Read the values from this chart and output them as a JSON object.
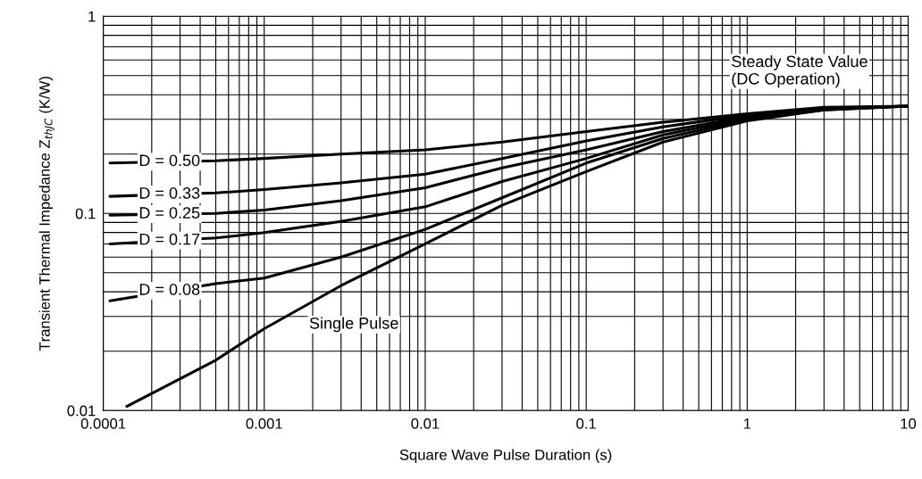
{
  "chart_data": {
    "type": "line",
    "xlabel": "Square Wave Pulse Duration (s)",
    "ylabel": "Transient Thermal Impedance Z$_{thJC}$ (K/W)",
    "log": "xy",
    "grid": true,
    "legend": false,
    "marker": "none",
    "line_style": "solid",
    "xlim": [
      0.0001,
      10
    ],
    "xticks": [
      0.0001,
      0.001,
      0.01,
      0.1,
      1,
      10
    ],
    "ylim": [
      0.01,
      1
    ],
    "yticks": [
      0.01,
      0.1,
      1
    ],
    "x": [
      0.00011,
      0.0005,
      0.001,
      0.003,
      0.01,
      0.03,
      0.1,
      0.3,
      1,
      3,
      10
    ],
    "series": [
      {
        "name": "D = 0.50",
        "color": "#000000",
        "values": [
          0.18,
          0.185,
          0.19,
          0.2,
          0.21,
          0.23,
          0.26,
          0.29,
          0.32,
          0.345,
          0.35
        ]
      },
      {
        "name": "D = 0.33",
        "color": "#000000",
        "values": [
          0.122,
          0.127,
          0.132,
          0.143,
          0.158,
          0.19,
          0.233,
          0.275,
          0.315,
          0.34,
          0.35
        ]
      },
      {
        "name": "D = 0.25",
        "color": "#000000",
        "values": [
          0.098,
          0.1,
          0.104,
          0.116,
          0.135,
          0.17,
          0.21,
          0.26,
          0.31,
          0.34,
          0.35
        ]
      },
      {
        "name": "D = 0.17",
        "color": "#000000",
        "values": [
          0.07,
          0.075,
          0.08,
          0.091,
          0.108,
          0.145,
          0.19,
          0.25,
          0.305,
          0.34,
          0.35
        ]
      },
      {
        "name": "D = 0.08",
        "color": "#000000",
        "values": [
          0.036,
          0.044,
          0.047,
          0.06,
          0.083,
          0.12,
          0.18,
          0.24,
          0.3,
          0.335,
          0.35
        ]
      },
      {
        "name": "Single Pulse",
        "color": "#000000",
        "x": [
          0.00014,
          0.0005,
          0.001,
          0.003,
          0.01,
          0.03,
          0.1,
          0.3,
          1,
          3,
          10
        ],
        "values": [
          0.0105,
          0.018,
          0.026,
          0.043,
          0.07,
          0.11,
          0.163,
          0.23,
          0.295,
          0.335,
          0.35
        ]
      }
    ],
    "annotations": [
      "Steady State Value\n(DC Operation)"
    ]
  }
}
